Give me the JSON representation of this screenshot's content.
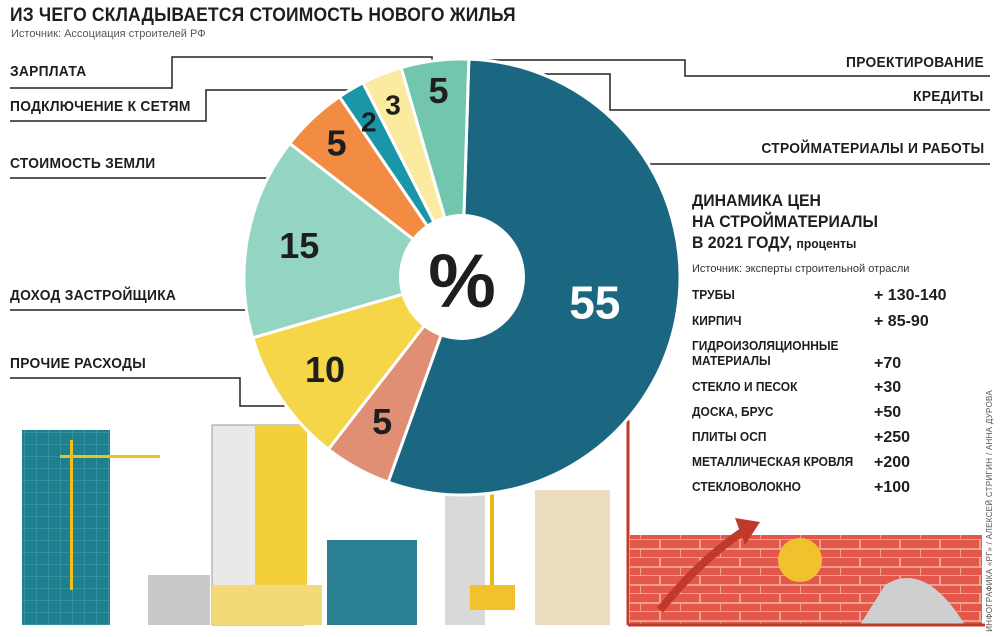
{
  "title": "ИЗ ЧЕГО СКЛАДЫВАЕТСЯ СТОИМОСТЬ НОВОГО ЖИЛЬЯ",
  "source": "Источник: Ассоциация строителей РФ",
  "center_label": "%",
  "chart_data": {
    "type": "pie",
    "title": "ИЗ ЧЕГО СКЛАДЫВАЕТСЯ СТОИМОСТЬ НОВОГО ЖИЛЬЯ",
    "unit": "%",
    "slices": [
      {
        "label": "Стройматериалы и работы",
        "value": 55,
        "color": "#1b6782"
      },
      {
        "label": "Прочие расходы",
        "value": 5,
        "color": "#e08e74"
      },
      {
        "label": "Доход застройщика",
        "value": 10,
        "color": "#f5d648"
      },
      {
        "label": "Стоимость земли",
        "value": 15,
        "color": "#93d4c3"
      },
      {
        "label": "Подключение к сетям",
        "value": 5,
        "color": "#f28c43"
      },
      {
        "label": "Зарплата",
        "value": 2,
        "color": "#1a96a8"
      },
      {
        "label": "Проектирование",
        "value": 3,
        "color": "#faeba0"
      },
      {
        "label": "Кредиты",
        "value": 5,
        "color": "#73c6ae"
      }
    ]
  },
  "labels": {
    "zarplata": "Зарплата",
    "podklyuchenie": "Подключение к сетям",
    "zemlya": "Стоимость земли",
    "dohod": "Доход застройщика",
    "prochie": "Прочие расходы",
    "proektirovanie": "Проектирование",
    "kredity": "Кредиты",
    "stroymaterialy": "Стройматериалы и работы"
  },
  "side": {
    "title_line1": "ДИНАМИКА ЦЕН",
    "title_line2": "НА СТРОЙМАТЕРИАЛЫ",
    "title_line3": "В 2021 ГОДУ,",
    "title_unit": "проценты",
    "source": "Источник: эксперты строительной отрасли",
    "items": [
      {
        "name": "Трубы",
        "value": "+ 130-140"
      },
      {
        "name": "Кирпич",
        "value": "+ 85-90"
      },
      {
        "name": "Гидроизоляционные материалы",
        "value": "+70"
      },
      {
        "name": "Стекло и песок",
        "value": "+30"
      },
      {
        "name": "Доска, брус",
        "value": "+50"
      },
      {
        "name": "Плиты ОСП",
        "value": "+250"
      },
      {
        "name": "Металлическая кровля",
        "value": "+200"
      },
      {
        "name": "Стекловолокно",
        "value": "+100"
      }
    ]
  },
  "credit": "ИНФОГРАФИКА «РГ» / АЛЕКСЕЙ СТРИГИН / АННА ДУРОВА"
}
